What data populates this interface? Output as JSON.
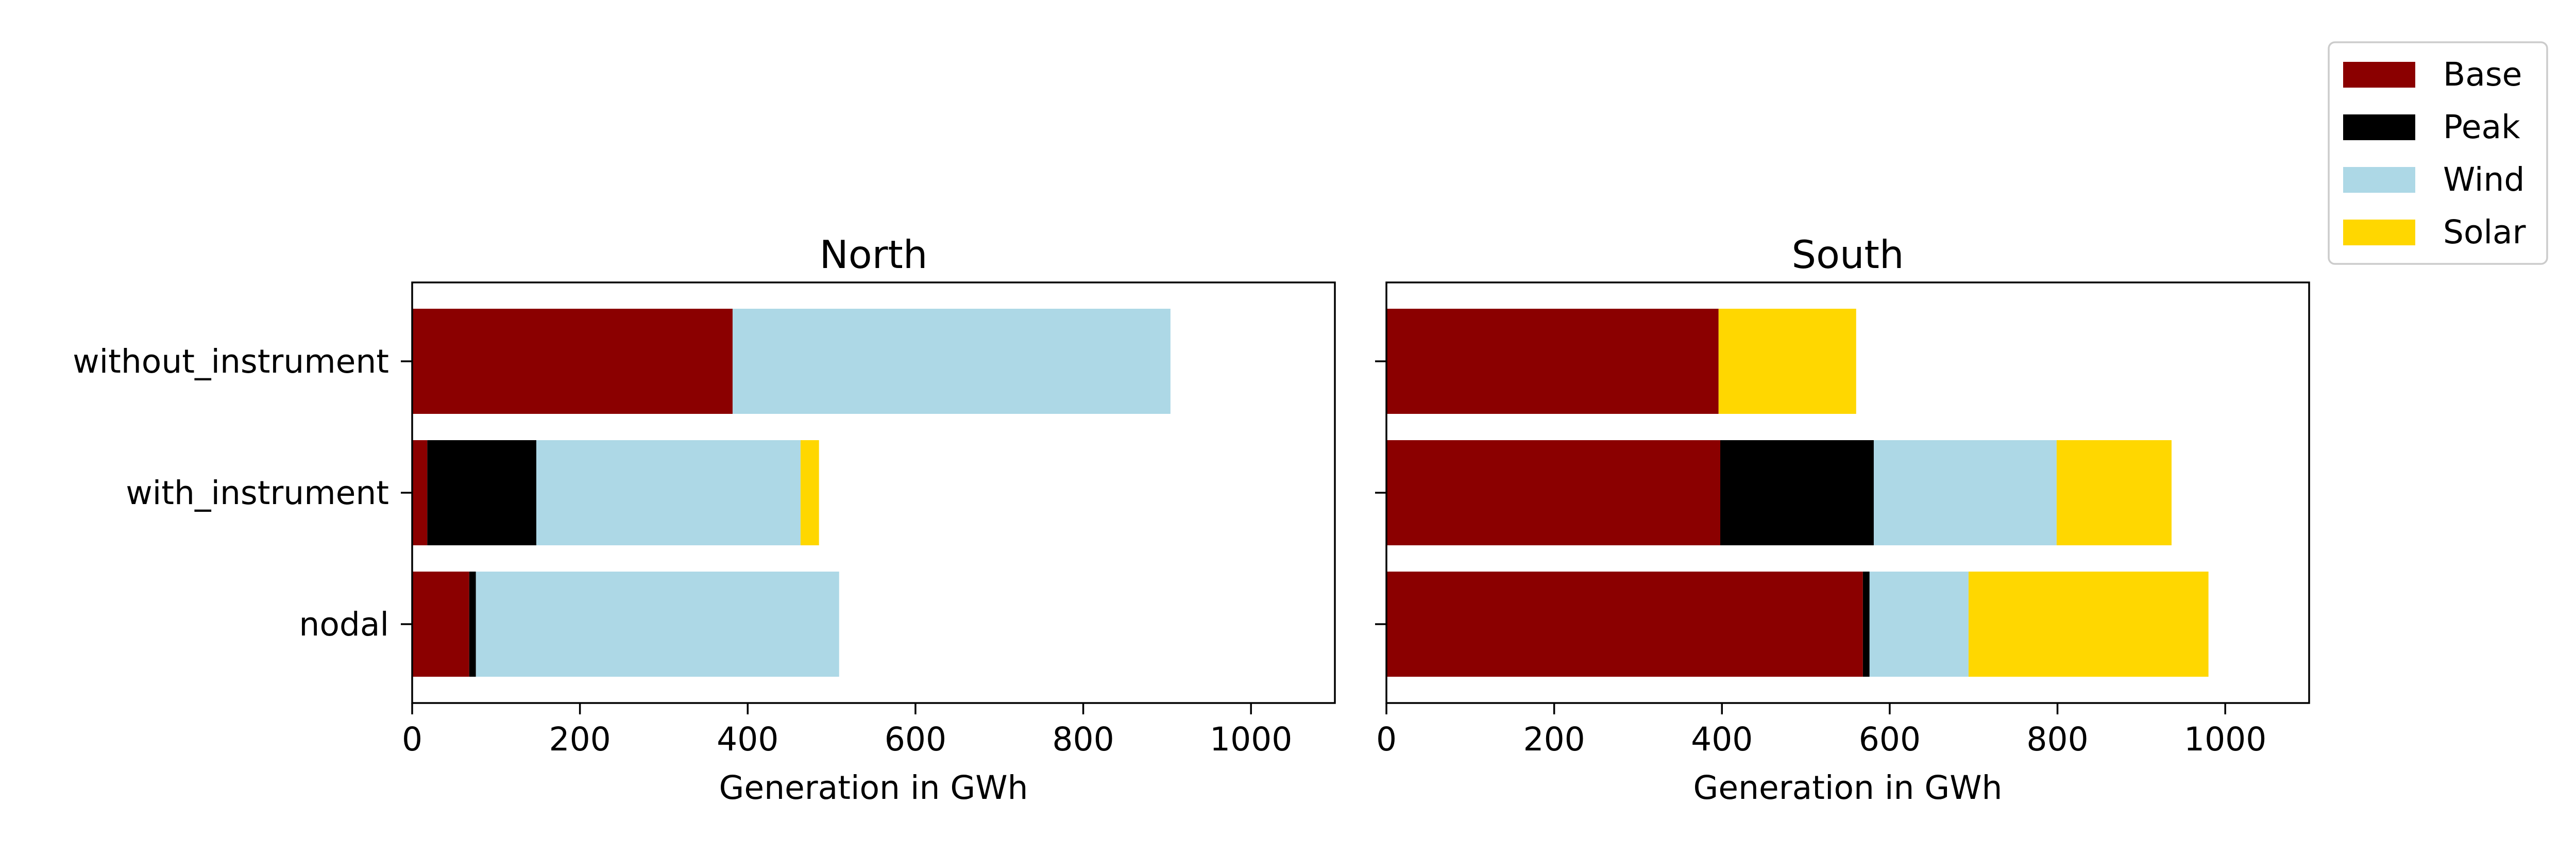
{
  "chart_data": {
    "type": "bar",
    "orientation": "horizontal",
    "stacked": true,
    "legend": {
      "placement": "upper-right",
      "entries": [
        "Base",
        "Peak",
        "Wind",
        "Solar"
      ]
    },
    "colors": {
      "Base": "#8B0000",
      "Peak": "#000000",
      "Wind": "#ADD8E6",
      "Solar": "#FFD700"
    },
    "categories": [
      "without_instrument",
      "with_instrument",
      "nodal"
    ],
    "xlim": [
      0,
      1100
    ],
    "xticks": [
      0,
      200,
      400,
      600,
      800,
      1000
    ],
    "grid": false,
    "panels": [
      {
        "title": "North",
        "xlabel": "Generation in GWh",
        "show_category_labels": true,
        "series": [
          {
            "name": "Base",
            "values": [
              382,
              18,
              68
            ]
          },
          {
            "name": "Peak",
            "values": [
              0,
              130,
              8
            ]
          },
          {
            "name": "Wind",
            "values": [
              522,
              315,
              433
            ]
          },
          {
            "name": "Solar",
            "values": [
              0,
              22,
              0
            ]
          }
        ]
      },
      {
        "title": "South",
        "xlabel": "Generation in GWh",
        "show_category_labels": false,
        "series": [
          {
            "name": "Base",
            "values": [
              396,
              398,
              568
            ]
          },
          {
            "name": "Peak",
            "values": [
              0,
              183,
              8
            ]
          },
          {
            "name": "Wind",
            "values": [
              0,
              218,
              118
            ]
          },
          {
            "name": "Solar",
            "values": [
              164,
              137,
              286
            ]
          }
        ]
      }
    ]
  }
}
